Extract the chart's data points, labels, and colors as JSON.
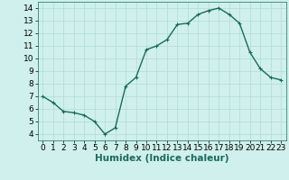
{
  "x": [
    0,
    1,
    2,
    3,
    4,
    5,
    6,
    7,
    8,
    9,
    10,
    11,
    12,
    13,
    14,
    15,
    16,
    17,
    18,
    19,
    20,
    21,
    22,
    23
  ],
  "y": [
    7.0,
    6.5,
    5.8,
    5.7,
    5.5,
    5.0,
    4.0,
    4.5,
    7.8,
    8.5,
    10.7,
    11.0,
    11.5,
    12.7,
    12.8,
    13.5,
    13.8,
    14.0,
    13.5,
    12.8,
    10.5,
    9.2,
    8.5,
    8.3
  ],
  "line_color": "#1a6b5a",
  "marker": "+",
  "marker_size": 3,
  "bg_color": "#cff0ec",
  "grid_color": "#b0ddd5",
  "xlabel": "Humidex (Indice chaleur)",
  "xlim": [
    -0.5,
    23.5
  ],
  "ylim": [
    3.5,
    14.5
  ],
  "yticks": [
    4,
    5,
    6,
    7,
    8,
    9,
    10,
    11,
    12,
    13,
    14
  ],
  "xticks": [
    0,
    1,
    2,
    3,
    4,
    5,
    6,
    7,
    8,
    9,
    10,
    11,
    12,
    13,
    14,
    15,
    16,
    17,
    18,
    19,
    20,
    21,
    22,
    23
  ],
  "xlabel_fontsize": 7.5,
  "tick_fontsize": 6.5,
  "line_width": 1.0
}
